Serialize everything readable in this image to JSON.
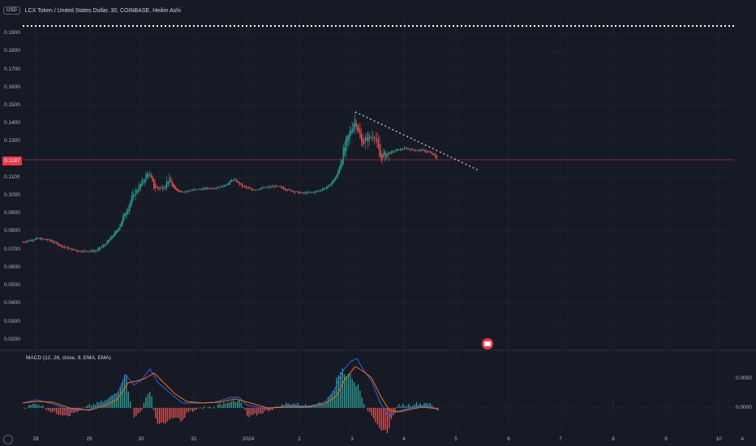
{
  "header": {
    "currency_badge": "USD",
    "symbol_title": "LCX Token / United States Dollar, 30, COINBASE, Heikin Ashi"
  },
  "price_axis": {
    "labels": [
      "0.1900",
      "0.1800",
      "0.1700",
      "0.1600",
      "0.1500",
      "0.1400",
      "0.1300",
      "0.1200",
      "0.1100",
      "0.1000",
      "0.0900",
      "0.0800",
      "0.0700",
      "0.0600",
      "0.0500",
      "0.0400",
      "0.0300",
      "0.0200"
    ],
    "current_price": "0.1187"
  },
  "macd": {
    "title": "MACD (12, 26, close, 9, EMA, EMA)",
    "axis_labels": [
      "0.0050",
      "0.0000"
    ]
  },
  "time_axis": {
    "labels": [
      "28",
      "29",
      "30",
      "31",
      "2024",
      "2",
      "3",
      "4",
      "5",
      "6",
      "7",
      "8",
      "9",
      "10"
    ]
  },
  "footer": {
    "auto_label": "A"
  },
  "colors": {
    "background": "#161a25",
    "up": "#26a69a",
    "down": "#ef5350",
    "macd_line": "#2962ff",
    "signal_line": "#ff6d00",
    "price_line": "#f23645"
  },
  "chart_data": {
    "type": "candlestick",
    "ylim": [
      0.015,
      0.195
    ],
    "close_series_approx": [
      {
        "x": "28",
        "y": 0.073
      },
      {
        "x": "28.5",
        "y": 0.074
      },
      {
        "x": "29",
        "y": 0.067
      },
      {
        "x": "29.5",
        "y": 0.069
      },
      {
        "x": "30",
        "y": 0.1
      },
      {
        "x": "30.3",
        "y": 0.113
      },
      {
        "x": "30.5",
        "y": 0.104
      },
      {
        "x": "31",
        "y": 0.102
      },
      {
        "x": "31.5",
        "y": 0.104
      },
      {
        "x": "2024",
        "y": 0.104
      },
      {
        "x": "1.5",
        "y": 0.102
      },
      {
        "x": "2",
        "y": 0.099
      },
      {
        "x": "2.5",
        "y": 0.103
      },
      {
        "x": "3",
        "y": 0.14
      },
      {
        "x": "3.3",
        "y": 0.128
      },
      {
        "x": "3.6",
        "y": 0.124
      },
      {
        "x": "4",
        "y": 0.124
      },
      {
        "x": "4.5",
        "y": 0.119
      }
    ],
    "macd_approx": [
      {
        "x": "28",
        "macd": 0.0003,
        "signal": 0.0002
      },
      {
        "x": "29",
        "macd": -0.0003,
        "signal": -0.0002
      },
      {
        "x": "30",
        "macd": 0.0035,
        "signal": 0.003
      },
      {
        "x": "30.3",
        "macd": 0.004,
        "signal": 0.0035
      },
      {
        "x": "31",
        "macd": 0.001,
        "signal": 0.0012
      },
      {
        "x": "2024",
        "macd": 0.0005,
        "signal": 0.0005
      },
      {
        "x": "2",
        "macd": 0.0001,
        "signal": 0.0001
      },
      {
        "x": "3",
        "macd": 0.005,
        "signal": 0.0045
      },
      {
        "x": "4",
        "macd": 0.0002,
        "signal": 0.0003
      },
      {
        "x": "4.5",
        "macd": -0.0001,
        "signal": 0.0
      }
    ]
  }
}
